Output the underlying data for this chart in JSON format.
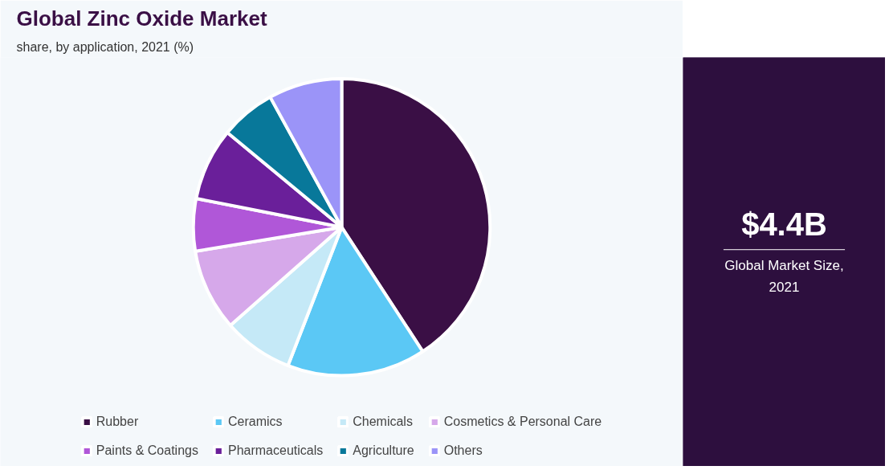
{
  "chart_data": [
    {
      "type": "pie",
      "title": "Global Zinc Oxide Market",
      "subtitle": "share, by application, 2021 (%)",
      "categories": [
        "Rubber",
        "Ceramics",
        "Chemicals",
        "Cosmetics & Personal Care",
        "Paints & Coatings",
        "Pharmaceuticals",
        "Agriculture",
        "Others"
      ],
      "values": [
        40.8,
        15.1,
        7.6,
        8.9,
        5.7,
        7.9,
        6.0,
        8.0
      ],
      "colors": [
        "#3a0f45",
        "#5bc8f5",
        "#c5e9f7",
        "#d6a8ea",
        "#b057d8",
        "#6a1f9a",
        "#08789a",
        "#9b94f8"
      ],
      "legend": "bottom"
    },
    {
      "type": "other",
      "title": "$4.4B",
      "subtitle": "Global Market Size, 2021"
    }
  ]
}
